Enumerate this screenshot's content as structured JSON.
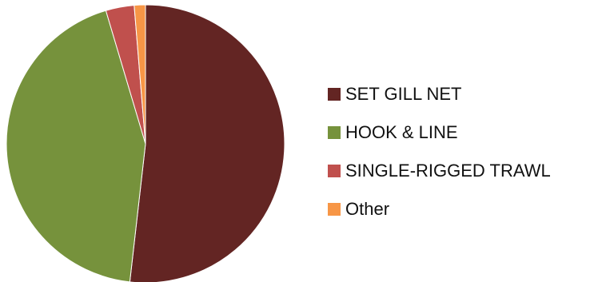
{
  "chart_data": {
    "type": "pie",
    "title": "",
    "categories": [
      "SET GILL NET",
      "HOOK & LINE",
      "SINGLE-RIGGED TRAWL",
      "Other"
    ],
    "values": [
      51.8,
      43.6,
      3.3,
      1.3
    ],
    "colors": [
      "#632523",
      "#76923c",
      "#c0504d",
      "#f79646"
    ],
    "start_angle_deg": 0,
    "direction": "clockwise",
    "legend": {
      "position": "right"
    }
  }
}
